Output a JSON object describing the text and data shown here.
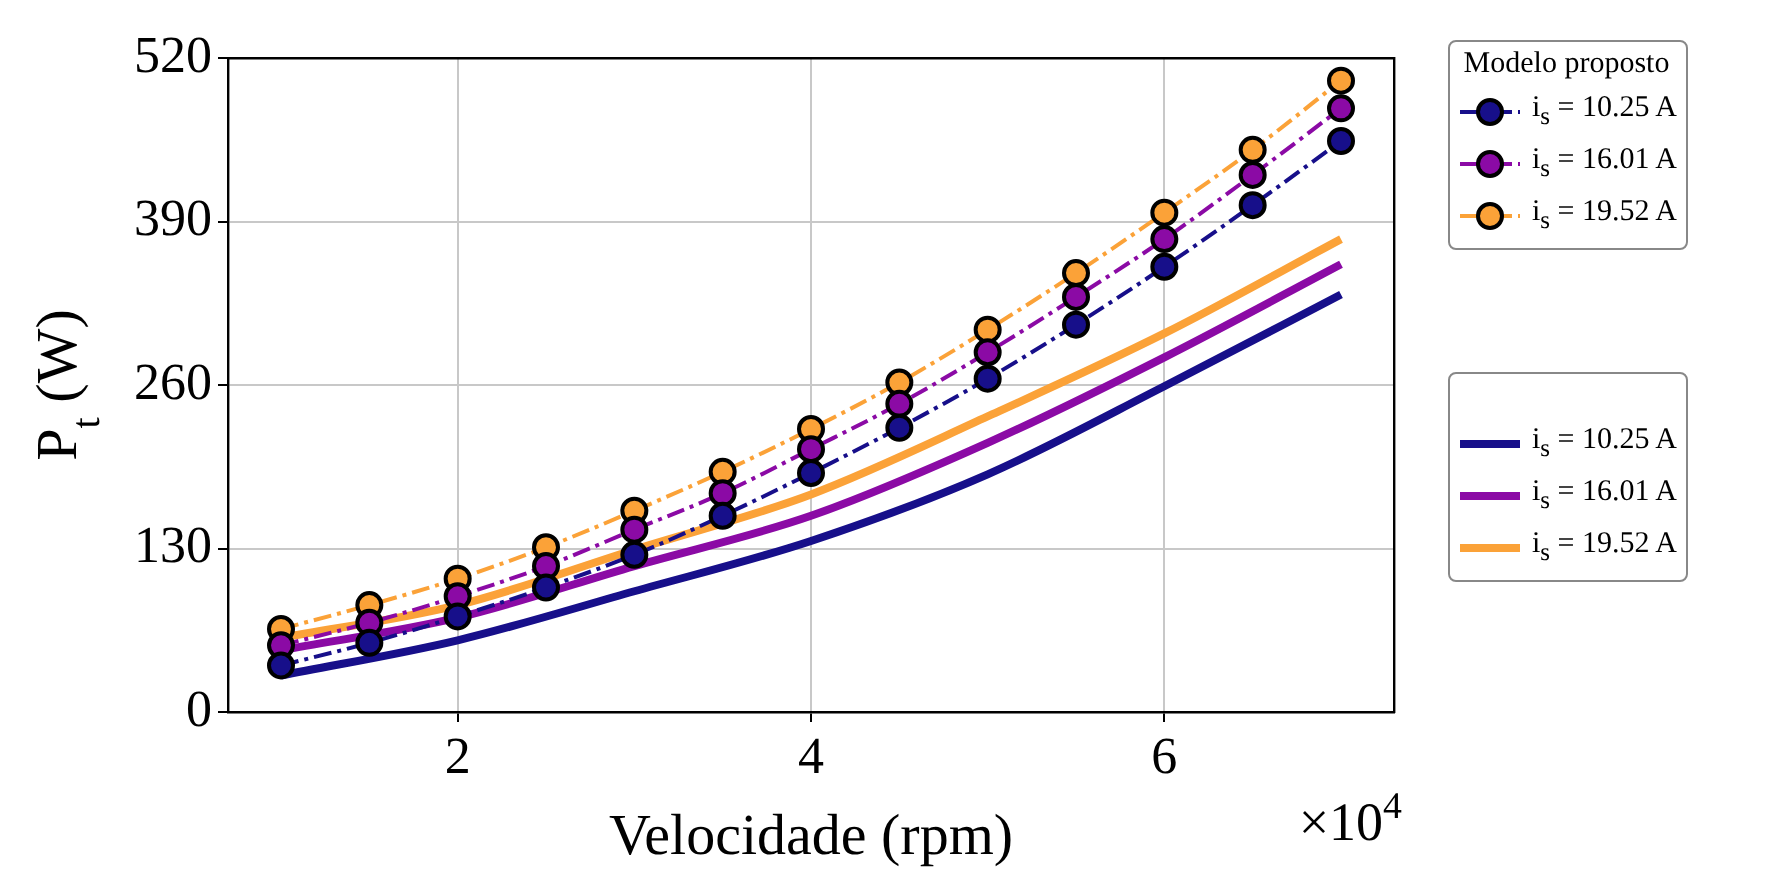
{
  "chart_data": {
    "type": "line",
    "xlabel": "Velocidade (rpm)",
    "ylabel": "P$_{t}$ (W)",
    "legend_title": "Modelo proposto",
    "xlim": [
      0.7,
      7.3
    ],
    "xticks": [
      2,
      4,
      6
    ],
    "ylim": [
      0,
      520
    ],
    "yticks": [
      0,
      130,
      260,
      390,
      520
    ],
    "grid": true,
    "legend": "right",
    "annotations": [
      "×10$^{4}$"
    ],
    "series": [
      {
        "name": "i$_{s}$ = 10.25 A",
        "color": "#170f8a",
        "marker": "circle",
        "line_style": "dashed",
        "x": [
          1,
          1.5,
          2,
          2.5,
          3,
          3.5,
          4,
          4.5,
          5,
          5.5,
          6,
          6.5,
          7
        ],
        "values": [
          37,
          55,
          76,
          99,
          125,
          156,
          190,
          226,
          265,
          308,
          354,
          403,
          454
        ]
      },
      {
        "name": "i$_{s}$ = 16.01 A",
        "color": "#8b0aa5",
        "marker": "circle",
        "line_style": "dashed",
        "x": [
          1,
          1.5,
          2,
          2.5,
          3,
          3.5,
          4,
          4.5,
          5,
          5.5,
          6,
          6.5,
          7
        ],
        "values": [
          53,
          71,
          92,
          116,
          145,
          174,
          209,
          245,
          286,
          330,
          376,
          427,
          480
        ]
      },
      {
        "name": "i$_{s}$ = 19.52 A",
        "color": "#fba238",
        "marker": "circle",
        "line_style": "dashed",
        "x": [
          1,
          1.5,
          2,
          2.5,
          3,
          3.5,
          4,
          4.5,
          5,
          5.5,
          6,
          6.5,
          7
        ],
        "values": [
          66,
          85,
          106,
          131,
          160,
          191,
          225,
          262,
          304,
          349,
          397,
          447,
          502
        ]
      },
      {
        "name": "i$_{s}$ = 10.25 A",
        "color": "#170f8a",
        "marker": "none",
        "line_style": "solid",
        "x": [
          1,
          2,
          3,
          4,
          5,
          6,
          7
        ],
        "values": [
          29,
          57,
          96,
          136,
          189,
          259,
          332
        ]
      },
      {
        "name": "i$_{s}$ = 16.01 A",
        "color": "#8b0aa5",
        "marker": "none",
        "line_style": "solid",
        "x": [
          1,
          2,
          3,
          4,
          5,
          6,
          7
        ],
        "values": [
          49,
          75,
          116,
          156,
          214,
          282,
          356
        ]
      },
      {
        "name": "i$_{s}$ = 19.52 A",
        "color": "#fba238",
        "marker": "none",
        "line_style": "solid",
        "x": [
          1,
          2,
          3,
          4,
          5,
          6,
          7
        ],
        "values": [
          59,
          85,
          129,
          173,
          235,
          301,
          376
        ]
      }
    ]
  }
}
